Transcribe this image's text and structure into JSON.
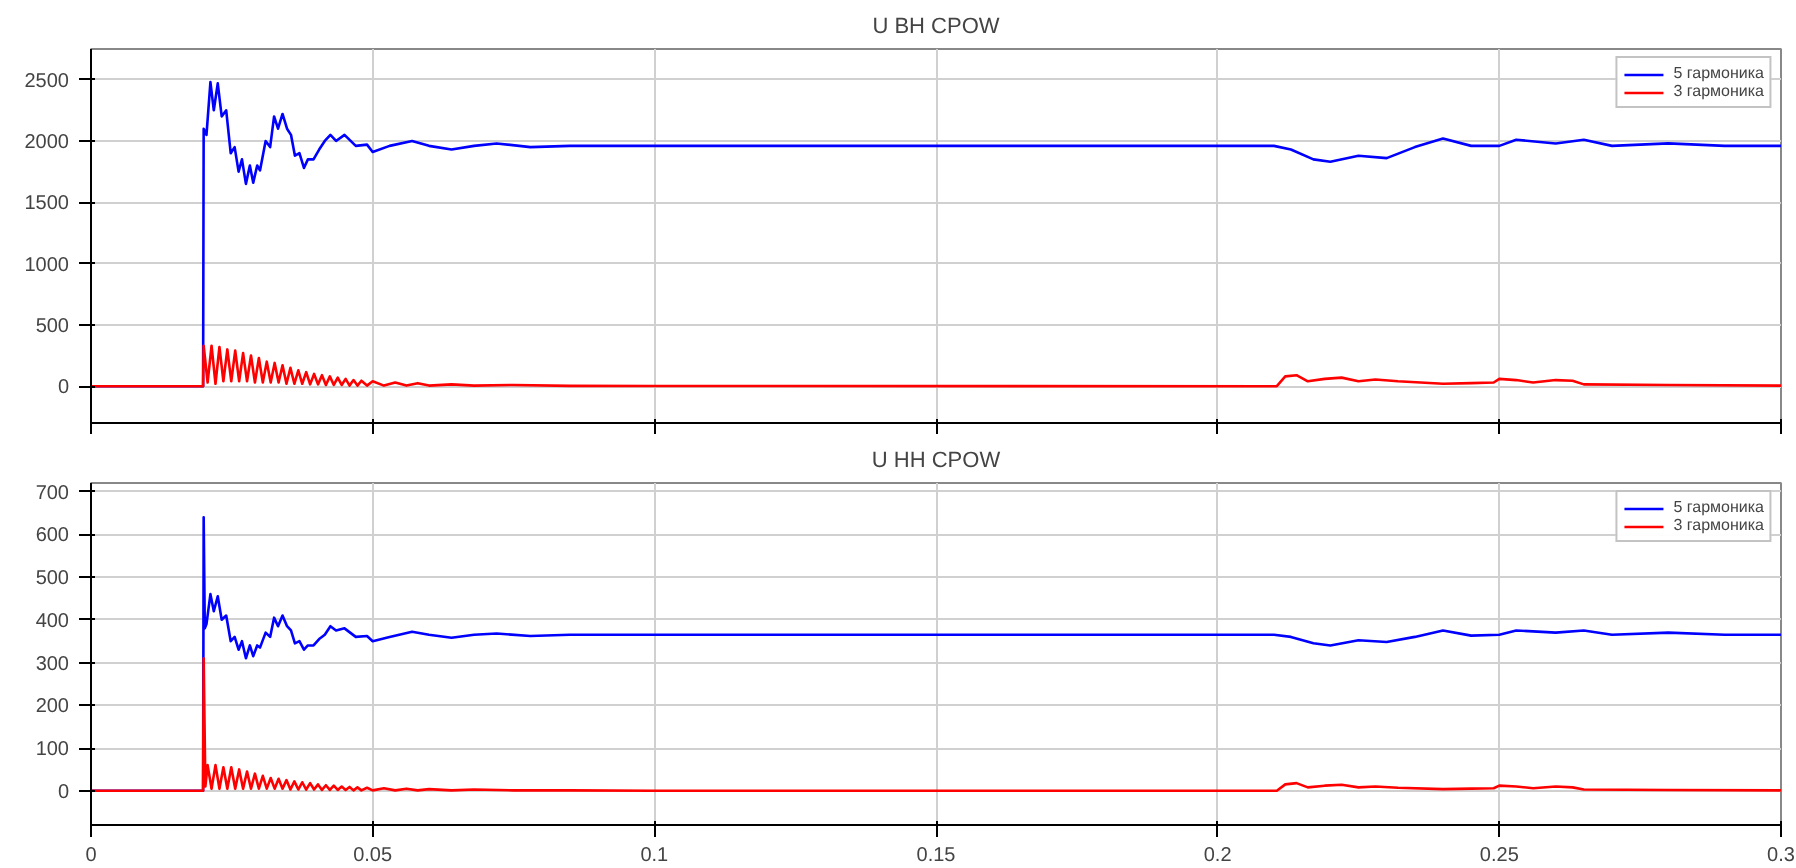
{
  "chart_data": [
    {
      "type": "line",
      "title": "U ВН CPOW",
      "xlim": [
        0,
        0.3
      ],
      "xticks": [
        0,
        0.05,
        0.1,
        0.15,
        0.2,
        0.25,
        0.3
      ],
      "ylim": [
        -300,
        2750
      ],
      "yticks": [
        0,
        500,
        1000,
        1500,
        2000,
        2500
      ],
      "grid": true,
      "legend": "top right",
      "tick_labels": "y",
      "series": [
        {
          "name": "5 гармоника",
          "color": "#0000ff",
          "x": [
            0,
            0.0199,
            0.02,
            0.0205,
            0.0212,
            0.0218,
            0.0225,
            0.0232,
            0.024,
            0.0248,
            0.0255,
            0.0262,
            0.0268,
            0.0275,
            0.0282,
            0.0288,
            0.0295,
            0.03,
            0.031,
            0.0318,
            0.0325,
            0.0332,
            0.034,
            0.0348,
            0.0355,
            0.0362,
            0.037,
            0.0378,
            0.0385,
            0.0395,
            0.0405,
            0.0415,
            0.0425,
            0.0435,
            0.045,
            0.047,
            0.049,
            0.05,
            0.053,
            0.057,
            0.06,
            0.064,
            0.068,
            0.072,
            0.078,
            0.085,
            0.1,
            0.12,
            0.15,
            0.18,
            0.21,
            0.213,
            0.217,
            0.22,
            0.225,
            0.23,
            0.235,
            0.24,
            0.245,
            0.25,
            0.253,
            0.26,
            0.265,
            0.27,
            0.28,
            0.29,
            0.3
          ],
          "values": [
            0,
            0,
            2100,
            2050,
            2480,
            2250,
            2470,
            2200,
            2250,
            1900,
            1950,
            1750,
            1850,
            1650,
            1800,
            1660,
            1800,
            1760,
            2000,
            1950,
            2200,
            2100,
            2220,
            2100,
            2050,
            1880,
            1900,
            1780,
            1850,
            1850,
            1930,
            2000,
            2050,
            2000,
            2050,
            1960,
            1970,
            1910,
            1960,
            2000,
            1960,
            1930,
            1960,
            1980,
            1950,
            1960,
            1960,
            1960,
            1960,
            1960,
            1960,
            1930,
            1850,
            1830,
            1880,
            1860,
            1950,
            2020,
            1960,
            1960,
            2010,
            1980,
            2010,
            1960,
            1980,
            1960,
            1960
          ]
        },
        {
          "name": "3 гармоника",
          "color": "#ff0000",
          "x": [
            0,
            0.0199,
            0.02,
            0.0207,
            0.0214,
            0.0221,
            0.0228,
            0.0235,
            0.0242,
            0.0249,
            0.0256,
            0.0263,
            0.027,
            0.0277,
            0.0284,
            0.0291,
            0.0298,
            0.0305,
            0.0312,
            0.0319,
            0.0326,
            0.0333,
            0.034,
            0.0347,
            0.0354,
            0.0361,
            0.0368,
            0.0375,
            0.0382,
            0.0389,
            0.0396,
            0.0403,
            0.041,
            0.0417,
            0.0424,
            0.0431,
            0.0438,
            0.0445,
            0.0452,
            0.0459,
            0.0466,
            0.0473,
            0.048,
            0.049,
            0.05,
            0.052,
            0.054,
            0.056,
            0.058,
            0.06,
            0.064,
            0.068,
            0.075,
            0.085,
            0.1,
            0.21,
            0.2105,
            0.212,
            0.214,
            0.216,
            0.219,
            0.222,
            0.225,
            0.228,
            0.232,
            0.24,
            0.245,
            0.249,
            0.25,
            0.253,
            0.256,
            0.26,
            0.263,
            0.265,
            0.28,
            0.3
          ],
          "values": [
            0,
            0,
            330,
            30,
            330,
            20,
            320,
            40,
            300,
            40,
            290,
            40,
            270,
            40,
            250,
            30,
            230,
            30,
            200,
            30,
            190,
            30,
            170,
            20,
            150,
            20,
            130,
            20,
            115,
            15,
            100,
            15,
            90,
            10,
            80,
            10,
            70,
            10,
            60,
            5,
            50,
            5,
            45,
            5,
            40,
            5,
            30,
            5,
            25,
            5,
            15,
            5,
            10,
            3,
            2,
            0,
            0,
            80,
            90,
            40,
            60,
            70,
            40,
            55,
            40,
            20,
            25,
            30,
            60,
            50,
            30,
            50,
            45,
            15,
            10,
            5
          ]
        }
      ]
    },
    {
      "type": "line",
      "title": "U НН CPOW",
      "xlim": [
        0,
        0.3
      ],
      "xticks": [
        0,
        0.05,
        0.1,
        0.15,
        0.2,
        0.25,
        0.3
      ],
      "ylim": [
        -80,
        720
      ],
      "yticks": [
        0,
        100,
        200,
        300,
        400,
        500,
        600,
        700
      ],
      "grid": true,
      "legend": "top right",
      "series": [
        {
          "name": "5 гармоника",
          "color": "#0000ff",
          "x": [
            0,
            0.0199,
            0.02,
            0.0202,
            0.0205,
            0.0212,
            0.0218,
            0.0225,
            0.0232,
            0.024,
            0.0248,
            0.0255,
            0.0262,
            0.0268,
            0.0275,
            0.0282,
            0.0288,
            0.0295,
            0.03,
            0.031,
            0.0318,
            0.0325,
            0.0332,
            0.034,
            0.0348,
            0.0355,
            0.0362,
            0.037,
            0.0378,
            0.0385,
            0.0395,
            0.0405,
            0.0415,
            0.0425,
            0.0435,
            0.045,
            0.047,
            0.049,
            0.05,
            0.053,
            0.057,
            0.06,
            0.064,
            0.068,
            0.072,
            0.078,
            0.085,
            0.1,
            0.12,
            0.15,
            0.18,
            0.21,
            0.213,
            0.217,
            0.22,
            0.225,
            0.23,
            0.235,
            0.24,
            0.245,
            0.25,
            0.253,
            0.26,
            0.265,
            0.27,
            0.28,
            0.29,
            0.3
          ],
          "values": [
            0,
            0,
            640,
            380,
            390,
            460,
            420,
            455,
            400,
            410,
            350,
            360,
            330,
            350,
            310,
            340,
            315,
            340,
            335,
            370,
            360,
            405,
            385,
            410,
            385,
            375,
            345,
            350,
            330,
            340,
            340,
            355,
            365,
            385,
            375,
            380,
            360,
            362,
            350,
            360,
            372,
            365,
            358,
            365,
            368,
            362,
            365,
            365,
            365,
            365,
            365,
            365,
            360,
            345,
            340,
            352,
            348,
            360,
            375,
            363,
            365,
            375,
            370,
            375,
            365,
            370,
            365,
            365
          ]
        },
        {
          "name": "3 гармоника",
          "color": "#ff0000",
          "x": [
            0,
            0.0199,
            0.02,
            0.0203,
            0.0207,
            0.0214,
            0.0221,
            0.0228,
            0.0235,
            0.0242,
            0.0249,
            0.0256,
            0.0263,
            0.027,
            0.0277,
            0.0284,
            0.0291,
            0.0298,
            0.0305,
            0.0312,
            0.0319,
            0.0326,
            0.0333,
            0.034,
            0.0347,
            0.0354,
            0.0361,
            0.0368,
            0.0375,
            0.0382,
            0.0389,
            0.0396,
            0.0403,
            0.041,
            0.0417,
            0.0424,
            0.0431,
            0.0438,
            0.0445,
            0.0452,
            0.0459,
            0.0466,
            0.0473,
            0.048,
            0.049,
            0.05,
            0.052,
            0.054,
            0.056,
            0.058,
            0.06,
            0.064,
            0.068,
            0.075,
            0.085,
            0.1,
            0.21,
            0.2105,
            0.212,
            0.214,
            0.216,
            0.219,
            0.222,
            0.225,
            0.228,
            0.232,
            0.24,
            0.245,
            0.249,
            0.25,
            0.253,
            0.256,
            0.26,
            0.263,
            0.265,
            0.28,
            0.3
          ],
          "values": [
            0,
            0,
            310,
            10,
            60,
            5,
            60,
            5,
            55,
            5,
            55,
            5,
            50,
            5,
            45,
            5,
            40,
            5,
            35,
            5,
            30,
            5,
            28,
            5,
            25,
            3,
            22,
            3,
            20,
            3,
            18,
            3,
            15,
            2,
            13,
            2,
            12,
            2,
            10,
            2,
            9,
            1,
            8,
            1,
            7,
            1,
            6,
            1,
            5,
            1,
            4,
            1,
            3,
            1,
            1,
            0,
            0,
            0,
            15,
            18,
            8,
            12,
            14,
            8,
            10,
            7,
            4,
            5,
            6,
            12,
            10,
            6,
            10,
            8,
            3,
            2,
            1
          ]
        }
      ]
    }
  ]
}
